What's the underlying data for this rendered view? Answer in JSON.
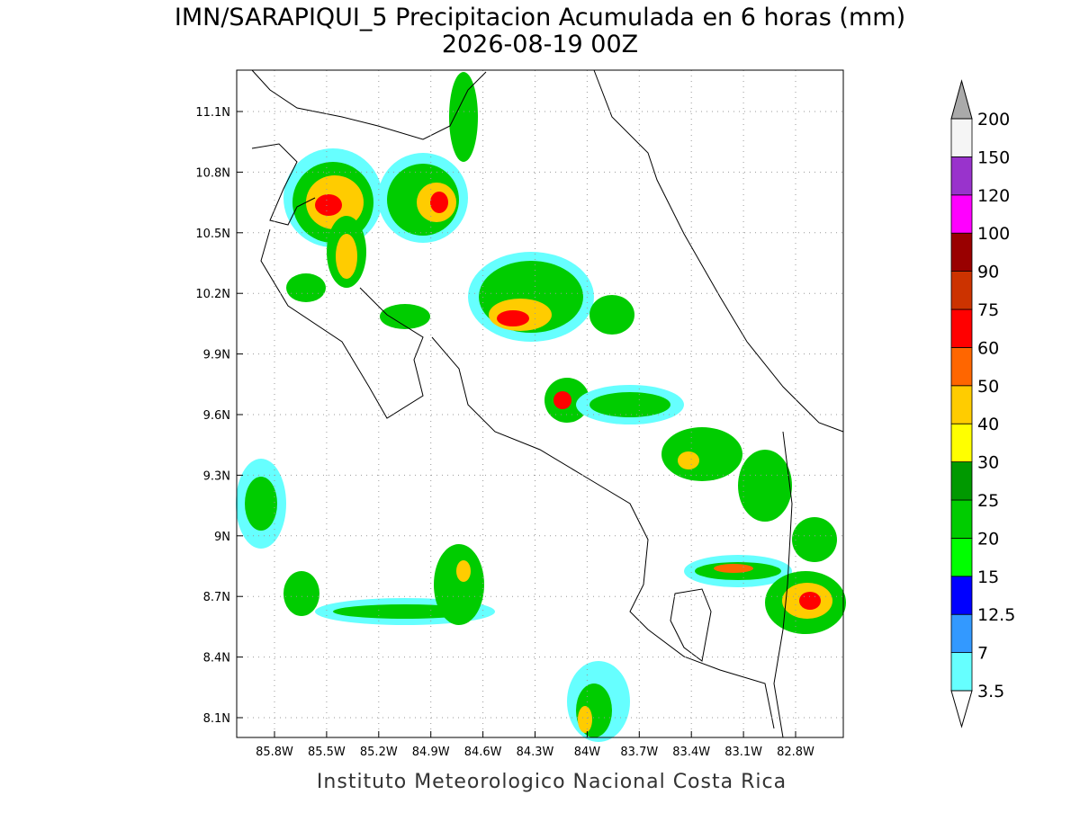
{
  "title": "IMN/SARAPIQUI_5 Precipitacion Acumulada en 6 horas (mm)",
  "subtitle": "2026-08-19 00Z",
  "lat_labels": [
    "11.1N",
    "10.8N",
    "10.5N",
    "10.2N",
    "9.9N",
    "9.6N",
    "9.3N",
    "9N",
    "8.7N",
    "8.4N",
    "8.1N"
  ],
  "lon_labels": [
    "85.8W",
    "85.5W",
    "85.2W",
    "84.9W",
    "84.6W",
    "84.3W",
    "84W",
    "83.7W",
    "83.4W",
    "83.1W",
    "82.8W"
  ],
  "colorbar": {
    "levels": [
      3.5,
      7,
      12.5,
      15,
      20,
      25,
      30,
      40,
      50,
      60,
      75,
      90,
      100,
      120,
      150,
      200
    ],
    "colors": [
      "#66ffff",
      "#3399ff",
      "#0000ff",
      "#00ff00",
      "#00cc00",
      "#009900",
      "#ffff00",
      "#ffcc00",
      "#ff6600",
      "#ff0000",
      "#cc3300",
      "#990000",
      "#ff00ff",
      "#9933cc",
      "#f5f5f5"
    ]
  },
  "footer": "Instituto Meteorologico Nacional Costa Rica"
}
